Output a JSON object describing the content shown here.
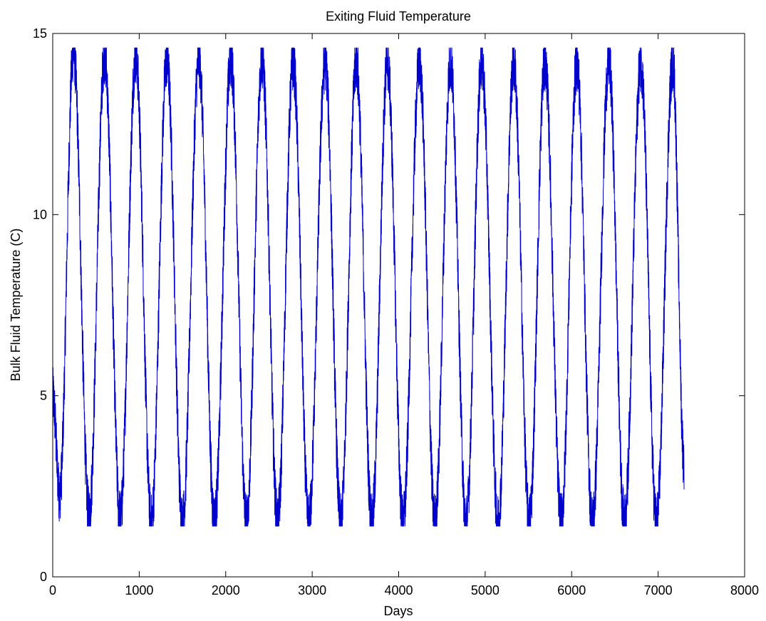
{
  "chart_data": {
    "type": "line",
    "title": "Exiting Fluid Temperature",
    "xlabel": "Days",
    "ylabel": "Bulk Fluid Temperature (C)",
    "xlim": [
      0,
      8000
    ],
    "ylim": [
      0,
      15
    ],
    "xticks": [
      0,
      1000,
      2000,
      3000,
      4000,
      5000,
      6000,
      7000,
      8000
    ],
    "xtick_labels": [
      "0",
      "1000",
      "2000",
      "3000",
      "4000",
      "5000",
      "6000",
      "7000",
      "8000"
    ],
    "yticks": [
      0,
      5,
      10,
      15
    ],
    "ytick_labels": [
      "0",
      "5",
      "10",
      "15"
    ],
    "grid": false,
    "legend": "none",
    "series": [
      {
        "color": "#0000cc",
        "x": [
          0,
          80,
          240,
          420,
          600,
          780,
          960,
          1140,
          1320,
          1500,
          1690,
          1870,
          2060,
          2240,
          2420,
          2600,
          2780,
          2960,
          3150,
          3330,
          3510,
          3690,
          3870,
          4050,
          4240,
          4420,
          4600,
          4780,
          4960,
          5150,
          5330,
          5510,
          5690,
          5880,
          6060,
          6240,
          6430,
          6610,
          6800,
          6980,
          7170,
          7300
        ],
        "y": [
          5.0,
          2.3,
          14.5,
          1.7,
          14.4,
          1.6,
          14.4,
          1.5,
          14.3,
          1.5,
          14.3,
          1.5,
          14.3,
          1.5,
          14.3,
          1.5,
          14.2,
          1.5,
          14.2,
          1.5,
          14.2,
          1.5,
          14.2,
          1.5,
          14.2,
          1.5,
          14.2,
          1.5,
          14.2,
          1.5,
          14.2,
          1.5,
          14.2,
          1.5,
          14.2,
          1.5,
          14.2,
          1.5,
          14.2,
          1.5,
          14.2,
          3.2
        ]
      }
    ]
  }
}
